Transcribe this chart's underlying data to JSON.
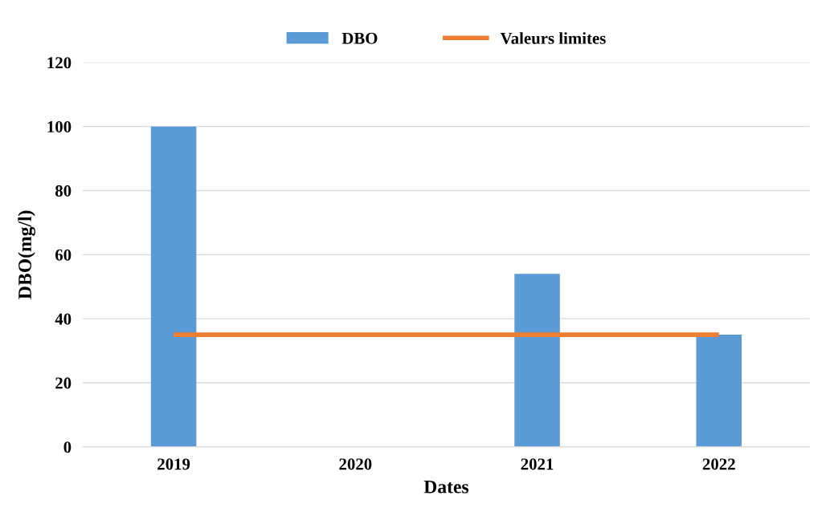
{
  "chart_data": {
    "type": "bar",
    "xlabel": "Dates",
    "ylabel": "DBO(mg/l)",
    "categories": [
      "2019",
      "2020",
      "2021",
      "2022"
    ],
    "series": [
      {
        "name": "DBO",
        "color": "#5b9bd5",
        "values": [
          100,
          null,
          54,
          35
        ]
      },
      {
        "name": "Valeurs limites",
        "type": "line",
        "color": "#ed7d31",
        "values": [
          35,
          35,
          35,
          35
        ]
      }
    ],
    "ylim": [
      0,
      120
    ],
    "yticks": [
      0,
      20,
      40,
      60,
      80,
      100,
      120
    ],
    "grid": "y",
    "legend": "top"
  }
}
